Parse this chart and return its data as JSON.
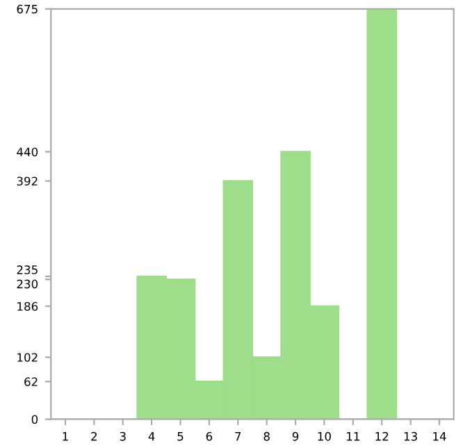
{
  "chart_data": {
    "type": "bar",
    "categories": [
      "1",
      "2",
      "3",
      "4",
      "5",
      "6",
      "7",
      "8",
      "9",
      "10",
      "11",
      "12",
      "13",
      "14"
    ],
    "values": [
      0,
      0,
      0,
      235,
      230,
      62,
      392,
      102,
      440,
      186,
      0,
      675,
      0,
      0
    ],
    "color": "#9ede8a",
    "ylim": [
      0,
      675
    ],
    "yticks": [
      0,
      62,
      102,
      186,
      230,
      235,
      392,
      440,
      675
    ],
    "grid": false
  }
}
